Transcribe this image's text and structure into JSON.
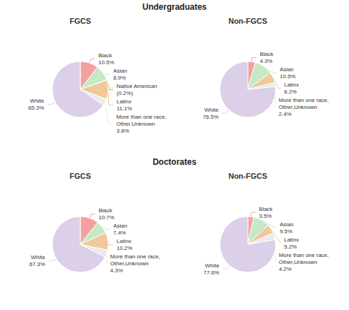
{
  "chart_data": [
    {
      "type": "pie",
      "title": "FGCS",
      "annotations": [
        "Undergraduates"
      ],
      "categories": [
        "Black",
        "Asian",
        "Native American\n(0.2%)",
        "Latinx",
        "More than one race,\nOther,Unknown",
        "White"
      ],
      "values": [
        10.5,
        8.9,
        0.2,
        11.1,
        3.8,
        65.3
      ],
      "value_labels": [
        "10.5%",
        "8.9%",
        null,
        "11.1%",
        "3.8%",
        "65.3%"
      ],
      "colors": [
        "#f4a0a0",
        "#c5e8c5",
        "#c8a060",
        "#f0c89a",
        "#ebebeb",
        "#dccfe8"
      ],
      "data_labels": true
    },
    {
      "type": "pie",
      "title": "Non-FGCS",
      "categories": [
        "Black",
        "Asian",
        "Latinx",
        "More than one race,\nOther,Unknown",
        "White"
      ],
      "values": [
        4.3,
        10.5,
        6.2,
        2.4,
        76.5
      ],
      "value_labels": [
        "4.3%",
        "10.5%",
        "6.2%",
        "2.4%",
        "76.5%"
      ],
      "colors": [
        "#f4a0a0",
        "#c5e8c5",
        "#f0c89a",
        "#ebebeb",
        "#dccfe8"
      ],
      "data_labels": true
    },
    {
      "type": "pie",
      "title": "FGCS",
      "annotations": [
        "Doctorates"
      ],
      "categories": [
        "Black",
        "Asian",
        "Latinx",
        "More than one race,\nOther,Unknown",
        "White"
      ],
      "values": [
        10.7,
        7.4,
        10.2,
        4.3,
        67.3
      ],
      "value_labels": [
        "10.7%",
        "7.4%",
        "10.2%",
        "4.3%",
        "67.3%"
      ],
      "colors": [
        "#f4a0a0",
        "#c5e8c5",
        "#f0c89a",
        "#ebebeb",
        "#dccfe8"
      ],
      "data_labels": true
    },
    {
      "type": "pie",
      "title": "Non-FGCS",
      "categories": [
        "Black",
        "Asian",
        "Latinx",
        "More than one race,\nOther,Unknown",
        "White"
      ],
      "values": [
        3.5,
        9.5,
        5.2,
        4.2,
        77.6
      ],
      "value_labels": [
        "3.5%",
        "9.5%",
        "5.2%",
        "4.2%",
        "77.6%"
      ],
      "colors": [
        "#f4a0a0",
        "#c5e8c5",
        "#f0c89a",
        "#ebebeb",
        "#dccfe8"
      ],
      "data_labels": true
    }
  ]
}
